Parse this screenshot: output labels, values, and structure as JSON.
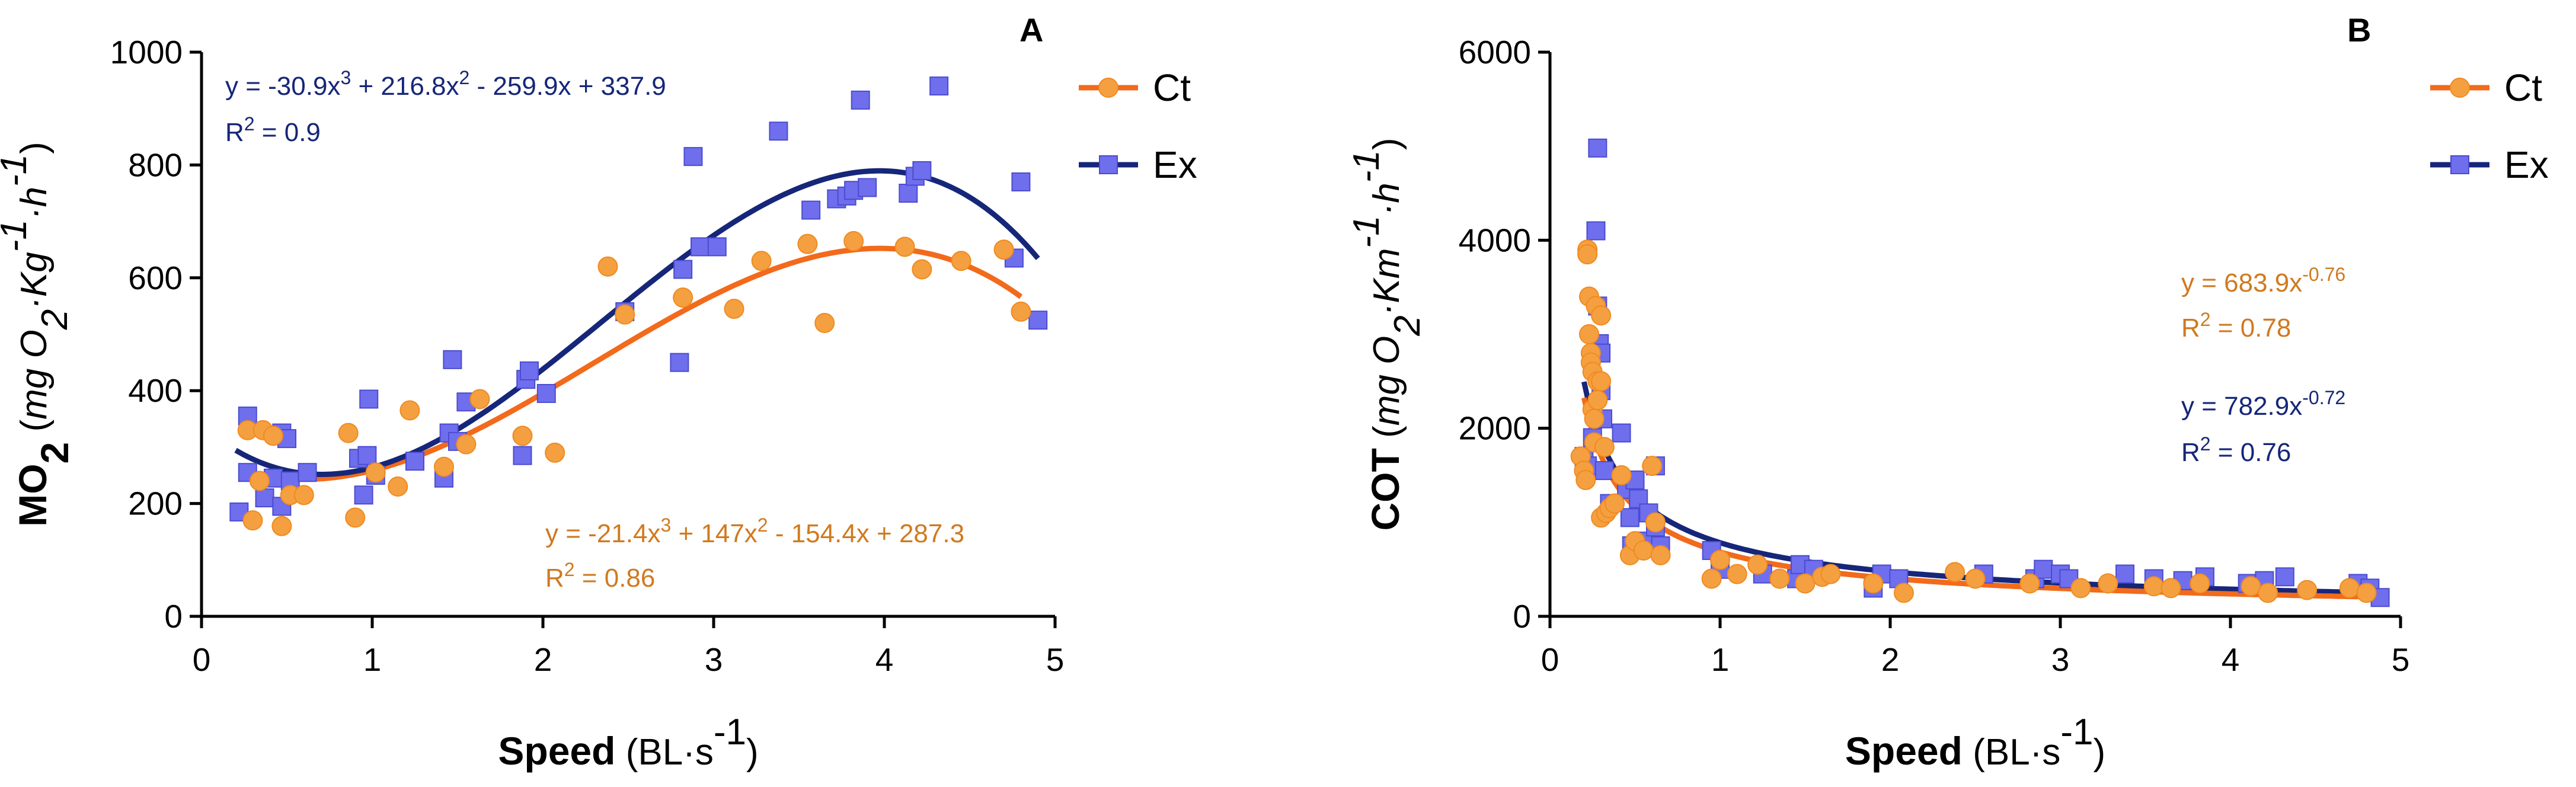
{
  "chart_data": [
    {
      "type": "scatter",
      "panel_label": "A",
      "xlabel": {
        "bold": "Speed",
        "unit": "(BL·s",
        "sup": "-1",
        "close": ")"
      },
      "ylabel": {
        "bold": "MO",
        "boldsub": "2",
        "open": " (",
        "unit1": "mg O",
        "sub1": "2",
        "unit2": "·Kg",
        "sup2": "-1",
        "unit3": "·h",
        "sup3": "-1",
        "close": ")"
      },
      "xlim": [
        0,
        5
      ],
      "ylim": [
        0,
        1000
      ],
      "xticks": [
        {
          "v": 0,
          "label": "0"
        },
        {
          "v": 1,
          "label": "1"
        },
        {
          "v": 2,
          "label": "2"
        },
        {
          "v": 3,
          "label": "3"
        },
        {
          "v": 4,
          "label": "4"
        },
        {
          "v": 5,
          "label": "5"
        }
      ],
      "yticks": [
        {
          "v": 0,
          "label": "0"
        },
        {
          "v": 200,
          "label": "200"
        },
        {
          "v": 400,
          "label": "400"
        },
        {
          "v": 600,
          "label": "600"
        },
        {
          "v": 800,
          "label": "800"
        },
        {
          "v": 1000,
          "label": "1000"
        }
      ],
      "legend": [
        {
          "name": "Ct",
          "color": "#F5A040",
          "line": "#F26A1B",
          "marker": "circle"
        },
        {
          "name": "Ex",
          "color": "#6F6FEE",
          "line": "#162679",
          "marker": "square"
        }
      ],
      "fits": [
        {
          "series": "Ct",
          "kind": "poly",
          "coef": [
            287.3,
            -154.4,
            147,
            -21.4
          ],
          "xrange": [
            0.28,
            4.8
          ]
        },
        {
          "series": "Ex",
          "kind": "poly",
          "coef": [
            337.9,
            -259.9,
            216.8,
            -30.9
          ],
          "xrange": [
            0.2,
            4.9
          ]
        }
      ],
      "annotations": [
        {
          "series": "Ex",
          "color": "#162679",
          "eq_parts": [
            "y = -30.9x",
            "3",
            " + 216.8x",
            "2",
            " - 259.9x + 337.9"
          ],
          "r2_parts": [
            "R",
            "2",
            " = 0.9"
          ]
        },
        {
          "series": "Ct",
          "color": "#D07A1F",
          "eq_parts": [
            "y = -21.4x",
            "3",
            " + 147x",
            "2",
            " - 154.4x + 287.3"
          ],
          "r2_parts": [
            "R",
            "2",
            " = 0.86"
          ]
        }
      ],
      "series": [
        {
          "name": "Ex",
          "points": [
            [
              0.22,
              185
            ],
            [
              0.27,
              355
            ],
            [
              0.27,
              255
            ],
            [
              0.37,
              210
            ],
            [
              0.42,
              245
            ],
            [
              0.47,
              325
            ],
            [
              0.47,
              195
            ],
            [
              0.5,
              315
            ],
            [
              0.52,
              240
            ],
            [
              0.62,
              255
            ],
            [
              0.92,
              280
            ],
            [
              0.95,
              215
            ],
            [
              0.97,
              285
            ],
            [
              0.98,
              385
            ],
            [
              1.02,
              250
            ],
            [
              1.25,
              275
            ],
            [
              1.42,
              245
            ],
            [
              1.45,
              325
            ],
            [
              1.47,
              455
            ],
            [
              1.5,
              310
            ],
            [
              1.55,
              380
            ],
            [
              1.88,
              285
            ],
            [
              1.9,
              420
            ],
            [
              1.92,
              435
            ],
            [
              2.02,
              395
            ],
            [
              2.48,
              540
            ],
            [
              2.8,
              450
            ],
            [
              2.82,
              615
            ],
            [
              2.88,
              815
            ],
            [
              2.92,
              655
            ],
            [
              3.02,
              655
            ],
            [
              3.38,
              860
            ],
            [
              3.57,
              720
            ],
            [
              3.72,
              740
            ],
            [
              3.78,
              745
            ],
            [
              3.82,
              755
            ],
            [
              3.86,
              915
            ],
            [
              3.9,
              760
            ],
            [
              4.14,
              750
            ],
            [
              4.18,
              780
            ],
            [
              4.22,
              790
            ],
            [
              4.32,
              940
            ],
            [
              4.76,
              635
            ],
            [
              4.8,
              770
            ],
            [
              4.9,
              525
            ]
          ]
        },
        {
          "name": "Ct",
          "points": [
            [
              0.27,
              330
            ],
            [
              0.3,
              170
            ],
            [
              0.34,
              240
            ],
            [
              0.36,
              330
            ],
            [
              0.42,
              320
            ],
            [
              0.47,
              160
            ],
            [
              0.52,
              215
            ],
            [
              0.6,
              215
            ],
            [
              0.86,
              325
            ],
            [
              0.9,
              175
            ],
            [
              1.02,
              255
            ],
            [
              1.15,
              230
            ],
            [
              1.22,
              365
            ],
            [
              1.42,
              265
            ],
            [
              1.55,
              305
            ],
            [
              1.63,
              385
            ],
            [
              1.88,
              320
            ],
            [
              2.07,
              290
            ],
            [
              2.38,
              620
            ],
            [
              2.48,
              535
            ],
            [
              2.82,
              565
            ],
            [
              3.12,
              545
            ],
            [
              3.28,
              630
            ],
            [
              3.55,
              660
            ],
            [
              3.65,
              520
            ],
            [
              3.82,
              665
            ],
            [
              4.12,
              655
            ],
            [
              4.22,
              615
            ],
            [
              4.45,
              630
            ],
            [
              4.7,
              650
            ],
            [
              4.8,
              540
            ]
          ]
        }
      ]
    },
    {
      "type": "scatter",
      "panel_label": "B",
      "xlabel": {
        "bold": "Speed",
        "unit": "(BL·s",
        "sup": "-1",
        "close": ")"
      },
      "ylabel": {
        "bold": "COT",
        "boldsub": "",
        "open": " (",
        "unit1": "mg O",
        "sub1": "2",
        "unit2": "·Km",
        "sup2": "-1",
        "unit3": "·h",
        "sup3": "-1",
        "close": ")"
      },
      "xlim": [
        0,
        5
      ],
      "ylim": [
        0,
        6000
      ],
      "xticks": [
        {
          "v": 0,
          "label": "0"
        },
        {
          "v": 1,
          "label": "1"
        },
        {
          "v": 2,
          "label": "2"
        },
        {
          "v": 3,
          "label": "3"
        },
        {
          "v": 4,
          "label": "4"
        },
        {
          "v": 5,
          "label": "5"
        }
      ],
      "yticks": [
        {
          "v": 0,
          "label": "0"
        },
        {
          "v": 2000,
          "label": "2000"
        },
        {
          "v": 4000,
          "label": "4000"
        },
        {
          "v": 6000,
          "label": "6000"
        }
      ],
      "legend": [
        {
          "name": "Ct",
          "color": "#F5A040",
          "line": "#F26A1B",
          "marker": "circle"
        },
        {
          "name": "Ex",
          "color": "#6F6FEE",
          "line": "#162679",
          "marker": "square"
        }
      ],
      "fits": [
        {
          "series": "Ex",
          "kind": "power",
          "a": 782.9,
          "b": -0.72,
          "xrange": [
            0.2,
            4.88
          ]
        },
        {
          "series": "Ct",
          "kind": "power",
          "a": 683.9,
          "b": -0.76,
          "xrange": [
            0.2,
            4.85
          ]
        }
      ],
      "annotations": [
        {
          "series": "Ct",
          "color": "#D07A1F",
          "eq_parts": [
            "y = 683.9x",
            "-0.76",
            ""
          ],
          "r2_parts": [
            "R",
            "2",
            " = 0.78"
          ]
        },
        {
          "series": "Ex",
          "color": "#162679",
          "eq_parts": [
            "y = 782.9x",
            "-0.72",
            ""
          ],
          "r2_parts": [
            "R",
            "2",
            " = 0.76"
          ]
        }
      ],
      "series": [
        {
          "name": "Ex",
          "points": [
            [
              0.2,
              1700
            ],
            [
              0.22,
              1600
            ],
            [
              0.25,
              1900
            ],
            [
              0.27,
              4100
            ],
            [
              0.28,
              4980
            ],
            [
              0.28,
              3300
            ],
            [
              0.29,
              2900
            ],
            [
              0.3,
              2800
            ],
            [
              0.3,
              2400
            ],
            [
              0.31,
              2100
            ],
            [
              0.32,
              1550
            ],
            [
              0.35,
              1200
            ],
            [
              0.42,
              1950
            ],
            [
              0.45,
              1350
            ],
            [
              0.47,
              1050
            ],
            [
              0.48,
              750
            ],
            [
              0.5,
              1450
            ],
            [
              0.52,
              1250
            ],
            [
              0.55,
              800
            ],
            [
              0.58,
              1100
            ],
            [
              0.62,
              1600
            ],
            [
              0.62,
              950
            ],
            [
              0.65,
              750
            ],
            [
              0.95,
              700
            ],
            [
              1.0,
              500
            ],
            [
              1.25,
              450
            ],
            [
              1.45,
              400
            ],
            [
              1.47,
              550
            ],
            [
              1.55,
              500
            ],
            [
              1.9,
              300
            ],
            [
              1.95,
              450
            ],
            [
              2.05,
              400
            ],
            [
              2.55,
              450
            ],
            [
              2.85,
              400
            ],
            [
              2.9,
              500
            ],
            [
              3.0,
              450
            ],
            [
              3.05,
              400
            ],
            [
              3.38,
              450
            ],
            [
              3.55,
              400
            ],
            [
              3.72,
              380
            ],
            [
              3.85,
              420
            ],
            [
              4.1,
              350
            ],
            [
              4.2,
              380
            ],
            [
              4.32,
              420
            ],
            [
              4.75,
              350
            ],
            [
              4.82,
              300
            ],
            [
              4.88,
              200
            ]
          ]
        },
        {
          "name": "Ct",
          "points": [
            [
              0.18,
              1700
            ],
            [
              0.2,
              1550
            ],
            [
              0.21,
              1450
            ],
            [
              0.22,
              3900
            ],
            [
              0.22,
              3850
            ],
            [
              0.23,
              3400
            ],
            [
              0.23,
              3000
            ],
            [
              0.24,
              2800
            ],
            [
              0.24,
              2700
            ],
            [
              0.25,
              2600
            ],
            [
              0.25,
              2200
            ],
            [
              0.26,
              2100
            ],
            [
              0.26,
              1850
            ],
            [
              0.27,
              3300
            ],
            [
              0.28,
              2500
            ],
            [
              0.28,
              2300
            ],
            [
              0.3,
              3200
            ],
            [
              0.3,
              2500
            ],
            [
              0.3,
              1050
            ],
            [
              0.32,
              1800
            ],
            [
              0.33,
              1100
            ],
            [
              0.35,
              1150
            ],
            [
              0.38,
              1200
            ],
            [
              0.42,
              1500
            ],
            [
              0.47,
              650
            ],
            [
              0.5,
              800
            ],
            [
              0.55,
              700
            ],
            [
              0.6,
              1600
            ],
            [
              0.62,
              1000
            ],
            [
              0.65,
              650
            ],
            [
              0.95,
              400
            ],
            [
              1.0,
              600
            ],
            [
              1.1,
              450
            ],
            [
              1.22,
              550
            ],
            [
              1.35,
              400
            ],
            [
              1.5,
              350
            ],
            [
              1.6,
              420
            ],
            [
              1.65,
              450
            ],
            [
              1.9,
              350
            ],
            [
              2.08,
              250
            ],
            [
              2.38,
              470
            ],
            [
              2.5,
              400
            ],
            [
              2.82,
              350
            ],
            [
              3.12,
              300
            ],
            [
              3.28,
              350
            ],
            [
              3.55,
              320
            ],
            [
              3.65,
              300
            ],
            [
              3.82,
              350
            ],
            [
              4.12,
              320
            ],
            [
              4.22,
              250
            ],
            [
              4.45,
              280
            ],
            [
              4.7,
              300
            ],
            [
              4.8,
              250
            ]
          ]
        }
      ]
    }
  ]
}
